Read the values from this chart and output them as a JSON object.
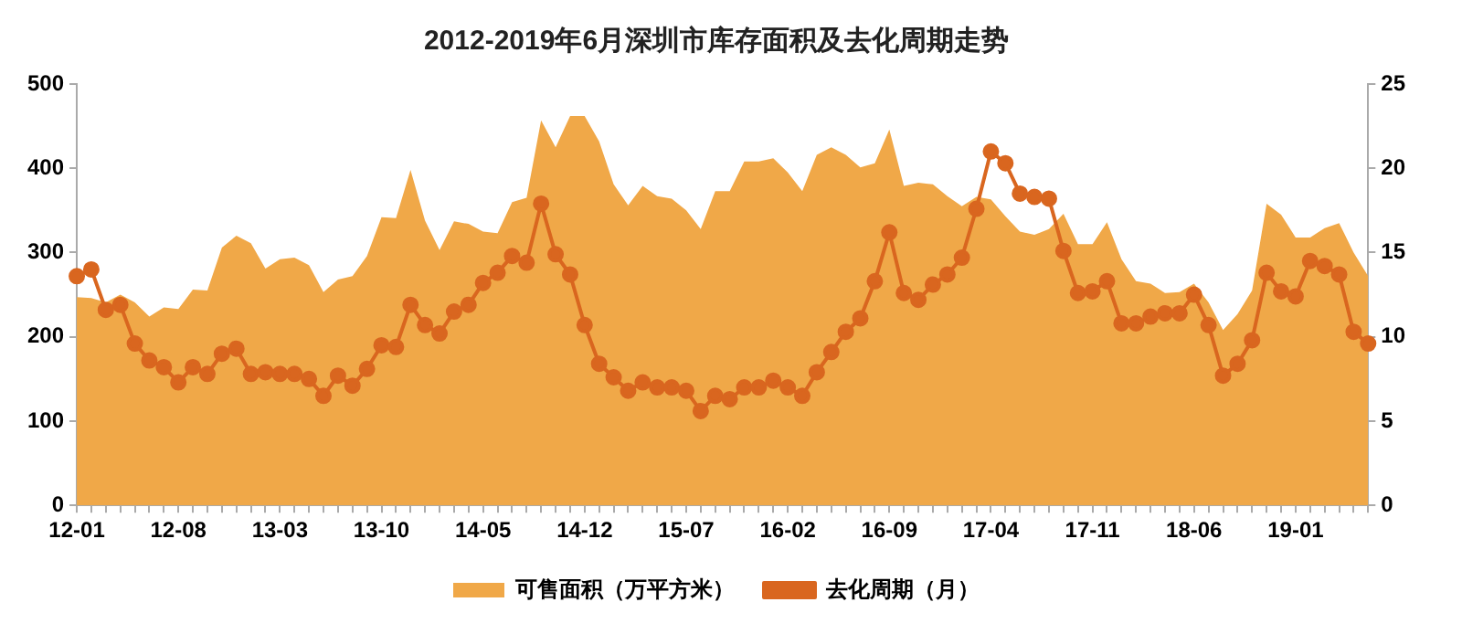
{
  "chart_data": {
    "type": "area",
    "title": "2012-2019年6月深圳市库存面积及去化周期走势",
    "categories": [
      "12-01",
      null,
      null,
      null,
      null,
      null,
      null,
      "12-08",
      null,
      null,
      null,
      null,
      null,
      null,
      "13-03",
      null,
      null,
      null,
      null,
      null,
      null,
      "13-10",
      null,
      null,
      null,
      null,
      null,
      null,
      "14-05",
      null,
      null,
      null,
      null,
      null,
      null,
      "14-12",
      null,
      null,
      null,
      null,
      null,
      null,
      "15-07",
      null,
      null,
      null,
      null,
      null,
      null,
      "16-02",
      null,
      null,
      null,
      null,
      null,
      null,
      "16-09",
      null,
      null,
      null,
      null,
      null,
      null,
      "17-04",
      null,
      null,
      null,
      null,
      null,
      null,
      "17-11",
      null,
      null,
      null,
      null,
      null,
      null,
      "18-06",
      null,
      null,
      null,
      null,
      null,
      null,
      "19-01",
      null,
      null,
      null,
      null,
      null
    ],
    "series": [
      {
        "name": "可售面积（万平方米）",
        "type": "area",
        "color": "#f0a848",
        "values": [
          247,
          246,
          241,
          250,
          241,
          224,
          235,
          233,
          256,
          255,
          306,
          320,
          311,
          281,
          292,
          294,
          285,
          253,
          268,
          272,
          296,
          342,
          341,
          398,
          338,
          303,
          337,
          334,
          325,
          323,
          360,
          365,
          457,
          425,
          462,
          462,
          432,
          381,
          356,
          379,
          367,
          364,
          350,
          328,
          373,
          373,
          408,
          408,
          412,
          395,
          373,
          416,
          425,
          416,
          401,
          406,
          446,
          379,
          383,
          381,
          367,
          355,
          366,
          363,
          343,
          325,
          321,
          328,
          346,
          310,
          310,
          336,
          292,
          266,
          263,
          252,
          253,
          263,
          241,
          208,
          227,
          255,
          358,
          345,
          318,
          318,
          329,
          335,
          300,
          272
        ]
      },
      {
        "name": "去化周期（月）",
        "type": "line",
        "axis": "y2",
        "color": "#d9661f",
        "marker": "circle",
        "values": [
          13.6,
          14.0,
          11.6,
          11.9,
          9.6,
          8.6,
          8.2,
          7.3,
          8.2,
          7.8,
          9.0,
          9.3,
          7.8,
          7.9,
          7.8,
          7.8,
          7.5,
          6.5,
          7.7,
          7.1,
          8.1,
          9.5,
          9.4,
          11.9,
          10.7,
          10.2,
          11.5,
          11.9,
          13.2,
          13.8,
          14.8,
          14.4,
          17.9,
          14.9,
          13.7,
          10.7,
          8.4,
          7.6,
          6.8,
          7.3,
          7.0,
          7.0,
          6.8,
          5.6,
          6.5,
          6.3,
          7.0,
          7.0,
          7.4,
          7.0,
          6.5,
          7.9,
          9.1,
          10.3,
          11.1,
          13.3,
          16.2,
          12.6,
          12.2,
          13.1,
          13.7,
          14.7,
          17.6,
          21.0,
          20.3,
          18.5,
          18.3,
          18.2,
          15.1,
          12.6,
          12.7,
          13.3,
          10.8,
          10.8,
          11.2,
          11.4,
          11.4,
          12.5,
          10.7,
          7.7,
          8.4,
          9.8,
          13.8,
          12.7,
          12.4,
          14.5,
          14.2,
          13.7,
          10.3,
          9.6
        ]
      }
    ],
    "ylim": [
      0,
      500
    ],
    "yticks": [
      0,
      100,
      200,
      300,
      400,
      500
    ],
    "y2lim": [
      0,
      25
    ],
    "y2ticks": [
      0,
      5,
      10,
      15,
      20,
      25
    ],
    "legend": "bottom"
  }
}
